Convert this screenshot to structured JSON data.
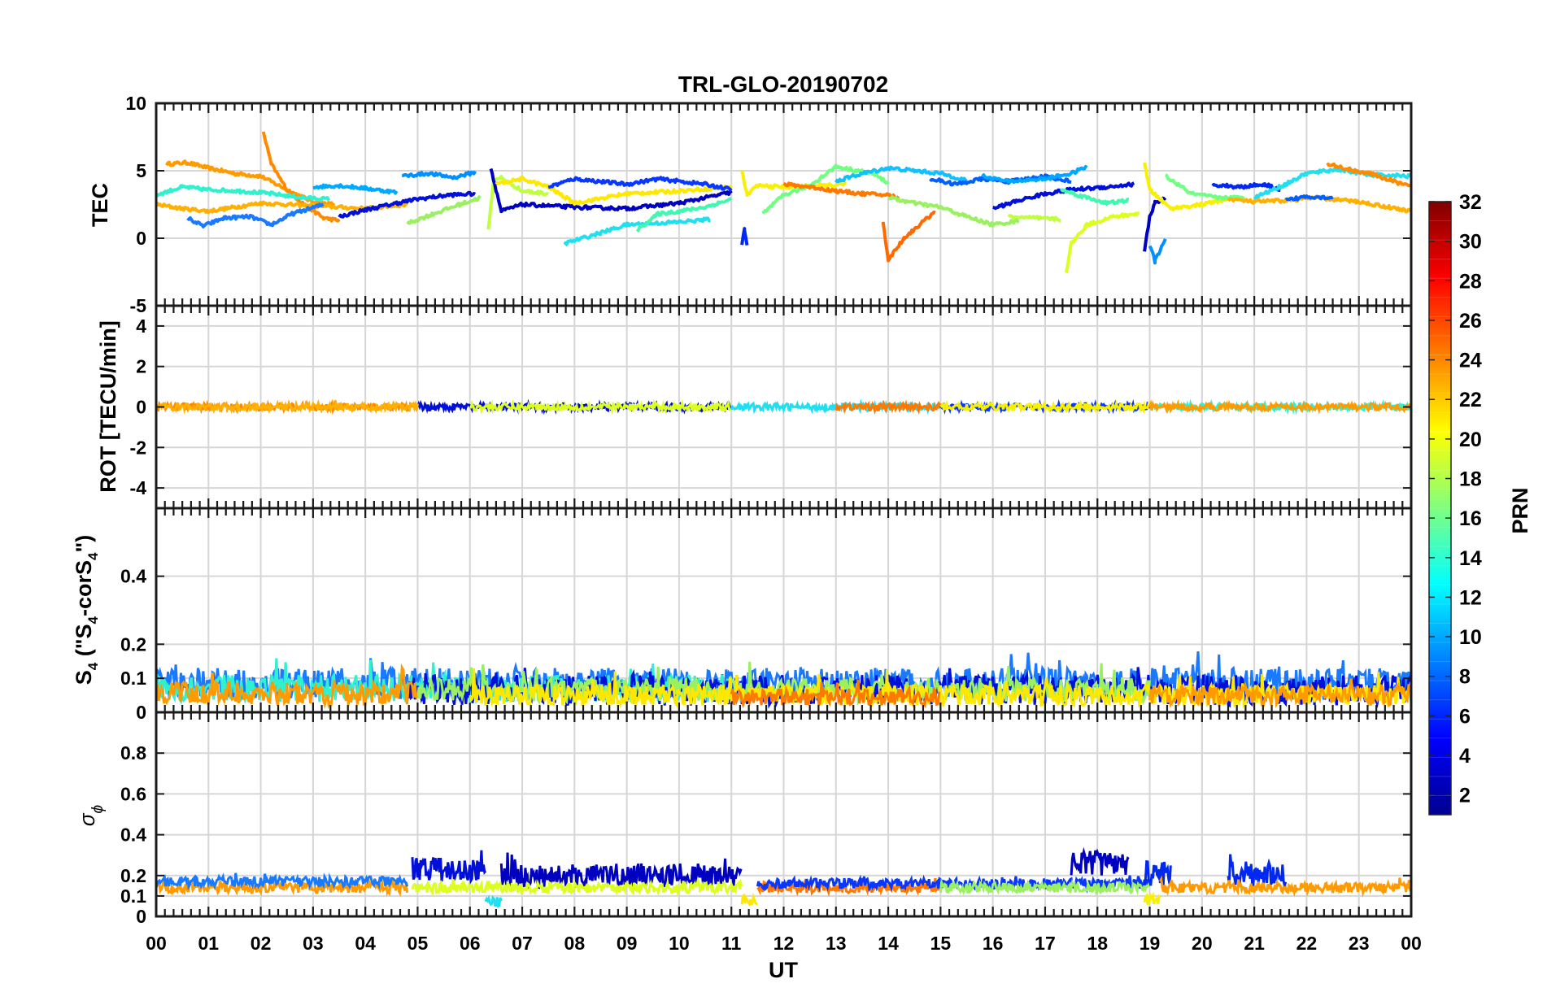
{
  "chart_data": {
    "title": "TRL-GLO-20190702",
    "type": "line",
    "x_label": "UT",
    "x_range": [
      0,
      24
    ],
    "x_tick_labels": [
      "00",
      "01",
      "02",
      "03",
      "04",
      "05",
      "06",
      "07",
      "08",
      "09",
      "10",
      "11",
      "12",
      "13",
      "14",
      "15",
      "16",
      "17",
      "18",
      "19",
      "20",
      "21",
      "22",
      "23",
      "00"
    ],
    "colorbar": {
      "label": "PRN",
      "range": [
        1,
        32
      ],
      "tick_labels": [
        "2",
        "4",
        "6",
        "8",
        "10",
        "12",
        "14",
        "16",
        "18",
        "20",
        "22",
        "24",
        "26",
        "28",
        "30",
        "32"
      ],
      "colormap": "jet"
    },
    "panels": [
      {
        "id": "tec",
        "ylabel": "TEC",
        "ylim": [
          -5,
          10
        ],
        "y_tick_labels": [
          "-5",
          "0",
          "5",
          "10"
        ],
        "series": [
          {
            "prn": 22,
            "color": "#ff9a00",
            "x": [
              0.2,
              0.6,
              1.0,
              1.5,
              2.0,
              2.6,
              3.0,
              3.4
            ],
            "y": [
              5.5,
              5.6,
              5.2,
              4.8,
              4.6,
              3.4,
              2.7,
              2.5
            ]
          },
          {
            "prn": 23,
            "color": "#ff8a00",
            "x": [
              2.05,
              2.2,
              2.5,
              2.8,
              3.2,
              3.5
            ],
            "y": [
              7.9,
              5.5,
              3.6,
              2.6,
              1.5,
              1.3
            ]
          },
          {
            "prn": 21,
            "color": "#ffb000",
            "x": [
              0.0,
              0.5,
              1.0,
              1.5,
              2.0,
              3.0,
              4.0,
              4.8
            ],
            "y": [
              2.5,
              2.2,
              2.0,
              2.3,
              2.6,
              2.4,
              2.2,
              2.5
            ]
          },
          {
            "prn": 13,
            "color": "#30f0d0",
            "x": [
              0.0,
              0.5,
              1.0,
              1.6,
              2.2,
              2.8,
              3.3
            ],
            "y": [
              3.2,
              3.8,
              3.6,
              3.5,
              3.3,
              3.0,
              2.9
            ]
          },
          {
            "prn": 8,
            "color": "#1a7aff",
            "x": [
              0.6,
              0.9,
              1.3,
              1.8,
              2.2,
              2.6,
              3.2
            ],
            "y": [
              1.5,
              0.9,
              1.5,
              1.6,
              1.0,
              1.8,
              2.5
            ]
          },
          {
            "prn": 10,
            "color": "#00a8ff",
            "x": [
              3.0,
              3.5,
              4.0,
              4.6
            ],
            "y": [
              3.8,
              3.9,
              3.7,
              3.4
            ]
          },
          {
            "prn": 3,
            "color": "#0010d8",
            "x": [
              3.5,
              4.0,
              4.6,
              5.0,
              5.6,
              6.1
            ],
            "y": [
              1.6,
              2.1,
              2.6,
              2.9,
              3.2,
              3.3
            ]
          },
          {
            "prn": 16,
            "color": "#9af060",
            "x": [
              4.8,
              5.3,
              5.8,
              6.2
            ],
            "y": [
              1.1,
              1.8,
              2.5,
              3.0
            ]
          },
          {
            "prn": 9,
            "color": "#0090ff",
            "x": [
              4.7,
              5.2,
              5.7,
              6.1
            ],
            "y": [
              4.6,
              4.8,
              4.5,
              4.9
            ]
          },
          {
            "prn": 17,
            "color": "#c0ff40",
            "x": [
              6.35,
              6.45,
              6.6,
              7.0,
              7.5
            ],
            "y": [
              0.6,
              4.2,
              4.5,
              3.5,
              3.3
            ]
          },
          {
            "prn": 2,
            "color": "#0000c0",
            "x": [
              6.4,
              6.6,
              7.0,
              8.0,
              9.0,
              10.0,
              11.0
            ],
            "y": [
              5.2,
              2.0,
              2.5,
              2.3,
              2.2,
              2.6,
              3.4
            ]
          },
          {
            "prn": 20,
            "color": "#ffe800",
            "x": [
              6.5,
              7.0,
              7.5,
              8.0,
              9.0,
              10.0,
              11.0
            ],
            "y": [
              4.0,
              4.4,
              3.8,
              2.6,
              3.3,
              3.5,
              3.8
            ]
          },
          {
            "prn": 5,
            "color": "#0838ff",
            "x": [
              7.5,
              8.0,
              9.0,
              9.6,
              10.5,
              11.0
            ],
            "y": [
              3.8,
              4.4,
              4.0,
              4.4,
              4.0,
              3.6
            ]
          },
          {
            "prn": 12,
            "color": "#20e0f0",
            "x": [
              7.8,
              8.5,
              9.0,
              10.0,
              10.6
            ],
            "y": [
              -0.4,
              0.4,
              1.0,
              1.2,
              1.4
            ]
          },
          {
            "prn": 14,
            "color": "#40f8b0",
            "x": [
              9.2,
              9.6,
              10.0,
              10.5,
              11.0
            ],
            "y": [
              0.6,
              1.8,
              2.0,
              2.3,
              2.9
            ]
          },
          {
            "prn": 4,
            "color": "#0028f0",
            "x": [
              11.2,
              11.25,
              11.3
            ],
            "y": [
              -0.5,
              0.7,
              -0.6
            ]
          },
          {
            "prn": 19,
            "color": "#f8f000",
            "x": [
              11.2,
              11.3,
              11.5,
              12.0,
              12.8,
              13.2
            ],
            "y": [
              5.0,
              3.2,
              3.9,
              3.8,
              3.9,
              4.0
            ]
          },
          {
            "prn": 15,
            "color": "#70ff80",
            "x": [
              11.6,
              12.0,
              12.5,
              13.0,
              13.7,
              14.0
            ],
            "y": [
              1.8,
              3.2,
              3.9,
              5.3,
              4.8,
              4.1
            ]
          },
          {
            "prn": 11,
            "color": "#10c0ff",
            "x": [
              13.0,
              13.5,
              14.0,
              14.5,
              15.0,
              15.5
            ],
            "y": [
              4.2,
              4.8,
              5.2,
              5.0,
              4.8,
              4.3
            ]
          },
          {
            "prn": 24,
            "color": "#ff7800",
            "x": [
              12.0,
              12.5,
              13.0,
              13.5,
              14.0,
              14.2
            ],
            "y": [
              4.0,
              3.8,
              3.5,
              3.3,
              3.2,
              3.0
            ]
          },
          {
            "prn": 25,
            "color": "#ff6a00",
            "x": [
              13.9,
              14.0,
              14.3,
              14.6,
              14.9
            ],
            "y": [
              1.2,
              -1.6,
              0.0,
              1.0,
              2.0
            ]
          },
          {
            "prn": 16,
            "color": "#9af060",
            "x": [
              14.0,
              14.5,
              15.0,
              15.5,
              16.0,
              16.5
            ],
            "y": [
              3.0,
              2.6,
              2.3,
              1.6,
              1.0,
              1.3
            ]
          },
          {
            "prn": 6,
            "color": "#0060ff",
            "x": [
              14.8,
              15.3,
              15.8,
              16.3,
              17.0,
              17.5
            ],
            "y": [
              4.4,
              4.0,
              4.4,
              4.2,
              4.6,
              4.2
            ]
          },
          {
            "prn": 10,
            "color": "#00a8ff",
            "x": [
              15.8,
              16.3,
              17.0,
              17.5,
              17.8
            ],
            "y": [
              4.6,
              4.2,
              4.4,
              4.8,
              5.3
            ]
          },
          {
            "prn": 3,
            "color": "#0010d8",
            "x": [
              16.0,
              16.5,
              17.0,
              17.5,
              18.2,
              18.7
            ],
            "y": [
              2.2,
              2.8,
              3.3,
              3.6,
              3.8,
              4.0
            ]
          },
          {
            "prn": 17,
            "color": "#c0ff40",
            "x": [
              16.3,
              16.8,
              17.3
            ],
            "y": [
              1.6,
              1.5,
              1.4
            ]
          },
          {
            "prn": 18,
            "color": "#dcff20",
            "x": [
              17.4,
              17.5,
              17.8,
              18.3,
              18.8
            ],
            "y": [
              -2.6,
              -0.4,
              1.0,
              1.6,
              1.8
            ]
          },
          {
            "prn": 14,
            "color": "#40f8b0",
            "x": [
              17.3,
              17.8,
              18.2,
              18.6
            ],
            "y": [
              3.6,
              3.0,
              2.6,
              2.8
            ]
          },
          {
            "prn": 2,
            "color": "#0000c0",
            "x": [
              18.9,
              19.0,
              19.1,
              19.3
            ],
            "y": [
              -1.0,
              1.6,
              2.6,
              3.0
            ]
          },
          {
            "prn": 9,
            "color": "#0090ff",
            "x": [
              19.0,
              19.1,
              19.3
            ],
            "y": [
              -0.5,
              -1.7,
              0.0
            ]
          },
          {
            "prn": 19,
            "color": "#f8f000",
            "x": [
              18.9,
              19.0,
              19.4,
              20.0,
              20.5
            ],
            "y": [
              5.5,
              3.6,
              2.2,
              2.5,
              2.9
            ]
          },
          {
            "prn": 15,
            "color": "#70ff80",
            "x": [
              19.3,
              19.8,
              20.3,
              20.8
            ],
            "y": [
              4.6,
              3.3,
              3.0,
              3.0
            ]
          },
          {
            "prn": 4,
            "color": "#0028f0",
            "x": [
              20.2,
              20.7,
              21.2,
              21.5
            ],
            "y": [
              4.0,
              3.8,
              4.0,
              3.6
            ]
          },
          {
            "prn": 12,
            "color": "#20e0f0",
            "x": [
              21.0,
              21.6,
              22.0,
              22.6,
              23.2,
              24.0
            ],
            "y": [
              3.0,
              4.0,
              4.8,
              5.1,
              4.7,
              4.6
            ]
          },
          {
            "prn": 21,
            "color": "#ffb000",
            "x": [
              20.5,
              21.0,
              21.6,
              22.2,
              23.0,
              24.0
            ],
            "y": [
              2.9,
              2.7,
              2.8,
              3.0,
              2.7,
              2.0
            ]
          },
          {
            "prn": 23,
            "color": "#ff8a00",
            "x": [
              22.4,
              22.8,
              23.2,
              23.6,
              24.0
            ],
            "y": [
              5.5,
              5.1,
              4.8,
              4.3,
              3.8
            ]
          },
          {
            "prn": 6,
            "color": "#0060ff",
            "x": [
              21.6,
              22.0,
              22.5
            ],
            "y": [
              2.8,
              3.1,
              3.0
            ]
          }
        ]
      },
      {
        "id": "rot",
        "ylabel": "ROT [TECU/min]",
        "ylim": [
          -5,
          5
        ],
        "y_tick_labels": [
          "-4",
          "-2",
          "0",
          "2",
          "4"
        ],
        "description_values": "all series fluctuate within about ±0.2 TECU/min around 0"
      },
      {
        "id": "s4",
        "ylabel_main": "S",
        "ylabel_sub": "4",
        "ylabel_rest": " (\"S",
        "ylabel_sub2": "4",
        "ylabel_rest2": "-corS",
        "ylabel_sub3": "4",
        "ylabel_end": "\")",
        "ylim": [
          0,
          0.6
        ],
        "y_tick_labels": [
          "0",
          "0.1",
          "0.2",
          "0.4"
        ],
        "typical_range": [
          0.0,
          0.2
        ]
      },
      {
        "id": "sigma_phi",
        "ylabel_main": "σ",
        "ylabel_sub": "ϕ",
        "ylim": [
          0,
          1
        ],
        "y_tick_labels": [
          "0",
          "0.1",
          "0.2",
          "0.4",
          "0.6",
          "0.8"
        ],
        "bands": [
          {
            "prn": 21,
            "color": "#ff9a00",
            "x": [
              0,
              4.8
            ],
            "center": 0.14
          },
          {
            "prn": 8,
            "color": "#1a7aff",
            "x": [
              0,
              4.8
            ],
            "center": 0.17
          },
          {
            "prn": 3,
            "color": "#0010d8",
            "x": [
              4.9,
              6.3
            ],
            "center": 0.23
          },
          {
            "prn": 2,
            "color": "#0000c0",
            "x": [
              6.6,
              11.2
            ],
            "center": 0.2
          },
          {
            "prn": 18,
            "color": "#dcff20",
            "x": [
              4.9,
              11.2
            ],
            "center": 0.14
          },
          {
            "prn": 12,
            "color": "#20e0f0",
            "x": [
              6.3,
              6.6
            ],
            "center": 0.07
          },
          {
            "prn": 20,
            "color": "#ffe800",
            "x": [
              11.2,
              11.5
            ],
            "center": 0.08
          },
          {
            "prn": 24,
            "color": "#ff7800",
            "x": [
              11.5,
              15.0
            ],
            "center": 0.14
          },
          {
            "prn": 5,
            "color": "#0838ff",
            "x": [
              11.5,
              19.0
            ],
            "center": 0.16
          },
          {
            "prn": 16,
            "color": "#9af060",
            "x": [
              15.0,
              19.0
            ],
            "center": 0.14
          },
          {
            "prn": 2,
            "color": "#0000c0",
            "x": [
              17.5,
              18.6
            ],
            "center": 0.26
          },
          {
            "prn": 4,
            "color": "#0028f0",
            "x": [
              18.9,
              19.4
            ],
            "center": 0.21
          },
          {
            "prn": 19,
            "color": "#f8f000",
            "x": [
              18.9,
              19.2
            ],
            "center": 0.08
          },
          {
            "prn": 4,
            "color": "#0028f0",
            "x": [
              20.5,
              21.6
            ],
            "center": 0.21
          },
          {
            "prn": 22,
            "color": "#ff9a00",
            "x": [
              19.2,
              24.0
            ],
            "center": 0.14
          }
        ]
      }
    ]
  }
}
